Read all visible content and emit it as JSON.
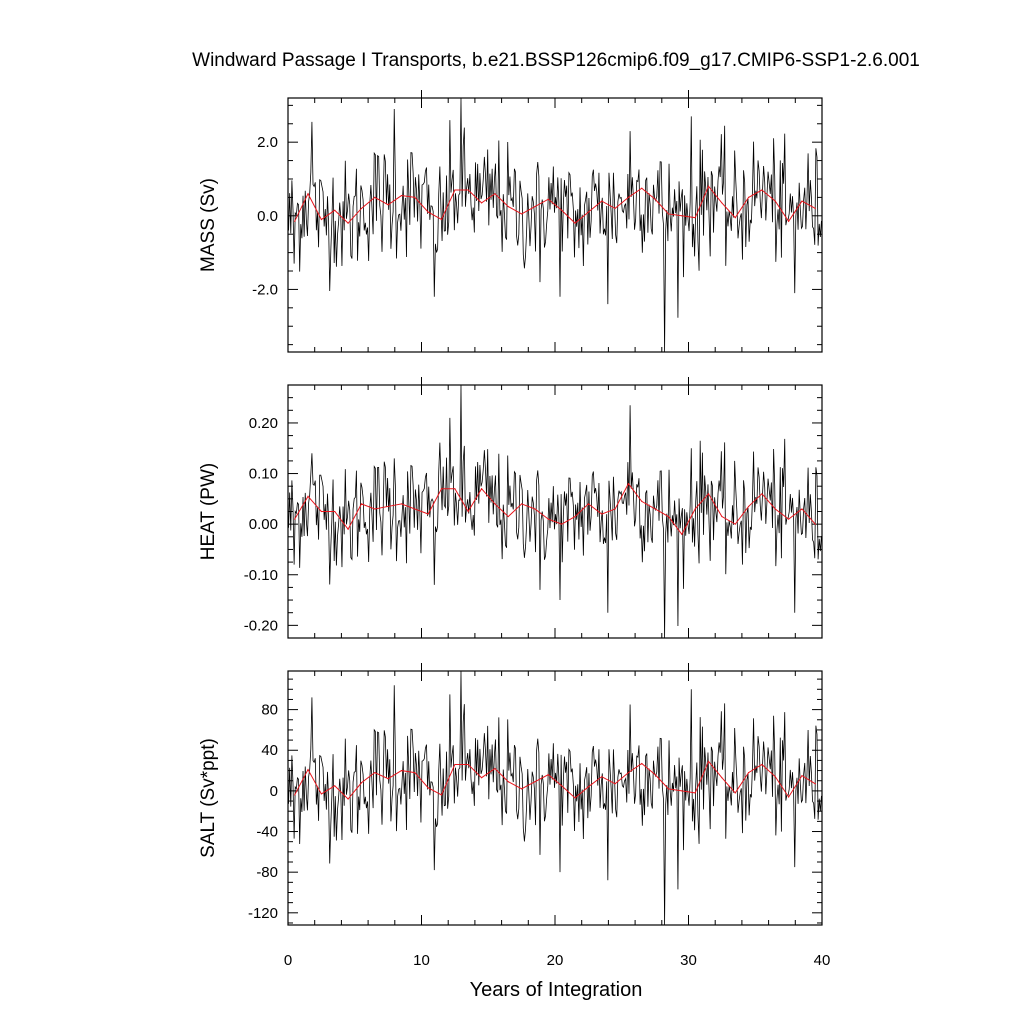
{
  "chart_data": {
    "type": "line",
    "title": "Windward Passage I Transports, b.e21.BSSP126cmip6.f09_g17.CMIP6-SSP1-2.6.001",
    "xlabel": "Years of Integration",
    "xlim": [
      0,
      40
    ],
    "x_ticks": [
      "0",
      "10",
      "20",
      "30",
      "40"
    ],
    "grid": false,
    "series_colors": {
      "monthly": "#000000",
      "annual_mean": "#e8141b"
    },
    "panels": [
      {
        "id": "mass",
        "ylabel": "MASS (Sv)",
        "ylim": [
          -3.7,
          3.2
        ],
        "y_ticks": [
          2.0,
          0.0,
          -2.0
        ],
        "y_tick_labels": [
          "2.0",
          "0.0",
          "-2.0"
        ],
        "annual_mean_x": [
          0.5,
          1.5,
          2.5,
          3.5,
          4.5,
          5.5,
          6.5,
          7.5,
          8.5,
          9.5,
          10.5,
          11.5,
          12.5,
          13.5,
          14.5,
          15.5,
          16.5,
          17.5,
          18.5,
          19.5,
          20.5,
          21.5,
          22.5,
          23.5,
          24.5,
          25.5,
          26.5,
          27.5,
          28.5,
          29.5,
          30.5,
          31.5,
          32.5,
          33.5,
          34.5,
          35.5,
          36.5,
          37.5,
          38.5,
          39.5
        ],
        "annual_mean": [
          -0.15,
          0.6,
          -0.1,
          0.15,
          -0.2,
          0.2,
          0.5,
          0.3,
          0.55,
          0.5,
          0.1,
          -0.1,
          0.7,
          0.7,
          0.35,
          0.6,
          0.25,
          0.05,
          0.25,
          0.45,
          0.15,
          -0.2,
          0.1,
          0.4,
          0.2,
          0.5,
          0.75,
          0.45,
          0.05,
          0.0,
          -0.05,
          0.8,
          0.35,
          -0.05,
          0.5,
          0.7,
          0.4,
          -0.15,
          0.4,
          0.2
        ],
        "monthly_sd": 0.8,
        "spikes": [
          [
            0.42,
            0.0,
            -1.3
          ],
          [
            1.75,
            2.55,
            0.0
          ],
          [
            7.9,
            2.9,
            0.0
          ],
          [
            10.9,
            0.0,
            -2.2
          ],
          [
            12.1,
            2.6,
            0.0
          ],
          [
            12.95,
            3.2,
            0.0
          ],
          [
            18.8,
            0.0,
            -1.8
          ],
          [
            20.3,
            0.0,
            -2.2
          ],
          [
            23.9,
            0.0,
            -2.4
          ],
          [
            25.6,
            2.3,
            0.0
          ],
          [
            28.2,
            0.0,
            -3.7
          ],
          [
            30.2,
            2.7,
            0.0
          ],
          [
            37.9,
            0.0,
            -2.1
          ]
        ]
      },
      {
        "id": "heat",
        "ylabel": "HEAT (PW)",
        "ylim": [
          -0.225,
          0.275
        ],
        "y_ticks": [
          0.2,
          0.1,
          0.0,
          -0.1,
          -0.2
        ],
        "y_tick_labels": [
          "0.20",
          "0.10",
          "0.00",
          "-0.10",
          "-0.20"
        ],
        "annual_mean_x": [
          0.5,
          1.5,
          2.5,
          3.5,
          4.5,
          5.5,
          6.5,
          7.5,
          8.5,
          9.5,
          10.5,
          11.5,
          12.5,
          13.5,
          14.5,
          15.5,
          16.5,
          17.5,
          18.5,
          19.5,
          20.5,
          21.5,
          22.5,
          23.5,
          24.5,
          25.5,
          26.5,
          27.5,
          28.5,
          29.5,
          30.5,
          31.5,
          32.5,
          33.5,
          34.5,
          35.5,
          36.5,
          37.5,
          38.5,
          39.5
        ],
        "annual_mean": [
          0.01,
          0.055,
          0.025,
          0.025,
          -0.01,
          0.04,
          0.03,
          0.035,
          0.04,
          0.03,
          0.02,
          0.07,
          0.07,
          0.025,
          0.07,
          0.04,
          0.015,
          0.04,
          0.03,
          0.01,
          0.0,
          0.015,
          0.04,
          0.02,
          0.03,
          0.08,
          0.045,
          0.03,
          0.015,
          -0.02,
          0.03,
          0.06,
          0.015,
          0.0,
          0.035,
          0.06,
          0.03,
          0.01,
          0.03,
          0.0
        ],
        "monthly_sd": 0.055,
        "spikes": [
          [
            0.42,
            0.0,
            -0.08
          ],
          [
            1.75,
            0.14,
            0.0
          ],
          [
            7.9,
            0.13,
            0.0
          ],
          [
            10.9,
            0.0,
            -0.12
          ],
          [
            12.1,
            0.21,
            0.0
          ],
          [
            12.95,
            0.275,
            0.0
          ],
          [
            18.8,
            0.0,
            -0.13
          ],
          [
            20.3,
            0.0,
            -0.15
          ],
          [
            23.9,
            0.0,
            -0.175
          ],
          [
            25.6,
            0.235,
            0.0
          ],
          [
            28.2,
            0.0,
            -0.225
          ],
          [
            30.2,
            0.15,
            0.0
          ],
          [
            37.9,
            0.0,
            -0.175
          ]
        ]
      },
      {
        "id": "salt",
        "ylabel": "SALT (Sv*ppt)",
        "ylim": [
          -132,
          118
        ],
        "y_ticks": [
          80,
          40,
          0,
          -40,
          -80,
          -120
        ],
        "y_tick_labels": [
          "80",
          "40",
          "0",
          "-40",
          "-80",
          "-120"
        ],
        "annual_mean_x": [
          0.5,
          1.5,
          2.5,
          3.5,
          4.5,
          5.5,
          6.5,
          7.5,
          8.5,
          9.5,
          10.5,
          11.5,
          12.5,
          13.5,
          14.5,
          15.5,
          16.5,
          17.5,
          18.5,
          19.5,
          20.5,
          21.5,
          22.5,
          23.5,
          24.5,
          25.5,
          26.5,
          27.5,
          28.5,
          29.5,
          30.5,
          31.5,
          32.5,
          33.5,
          34.5,
          35.5,
          36.5,
          37.5,
          38.5,
          39.5
        ],
        "annual_mean": [
          -4,
          21,
          -3,
          5,
          -8,
          8,
          18,
          12,
          20,
          18,
          3,
          -4,
          26,
          26,
          13,
          22,
          9,
          2,
          9,
          16,
          5,
          -7,
          4,
          14,
          7,
          18,
          27,
          16,
          2,
          0,
          -2,
          29,
          13,
          -2,
          18,
          26,
          14,
          -6,
          15,
          7
        ],
        "monthly_sd": 28,
        "spikes": [
          [
            0.42,
            0.0,
            -47
          ],
          [
            1.75,
            92,
            0.0
          ],
          [
            7.9,
            104,
            0.0
          ],
          [
            10.9,
            0.0,
            -78
          ],
          [
            12.1,
            95,
            0.0
          ],
          [
            12.95,
            118,
            0.0
          ],
          [
            18.8,
            0.0,
            -63
          ],
          [
            20.3,
            0.0,
            -80
          ],
          [
            23.9,
            0.0,
            -88
          ],
          [
            25.6,
            85,
            0.0
          ],
          [
            28.2,
            0.0,
            -132
          ],
          [
            30.2,
            100,
            0.0
          ],
          [
            37.9,
            0.0,
            -75
          ]
        ]
      }
    ]
  }
}
